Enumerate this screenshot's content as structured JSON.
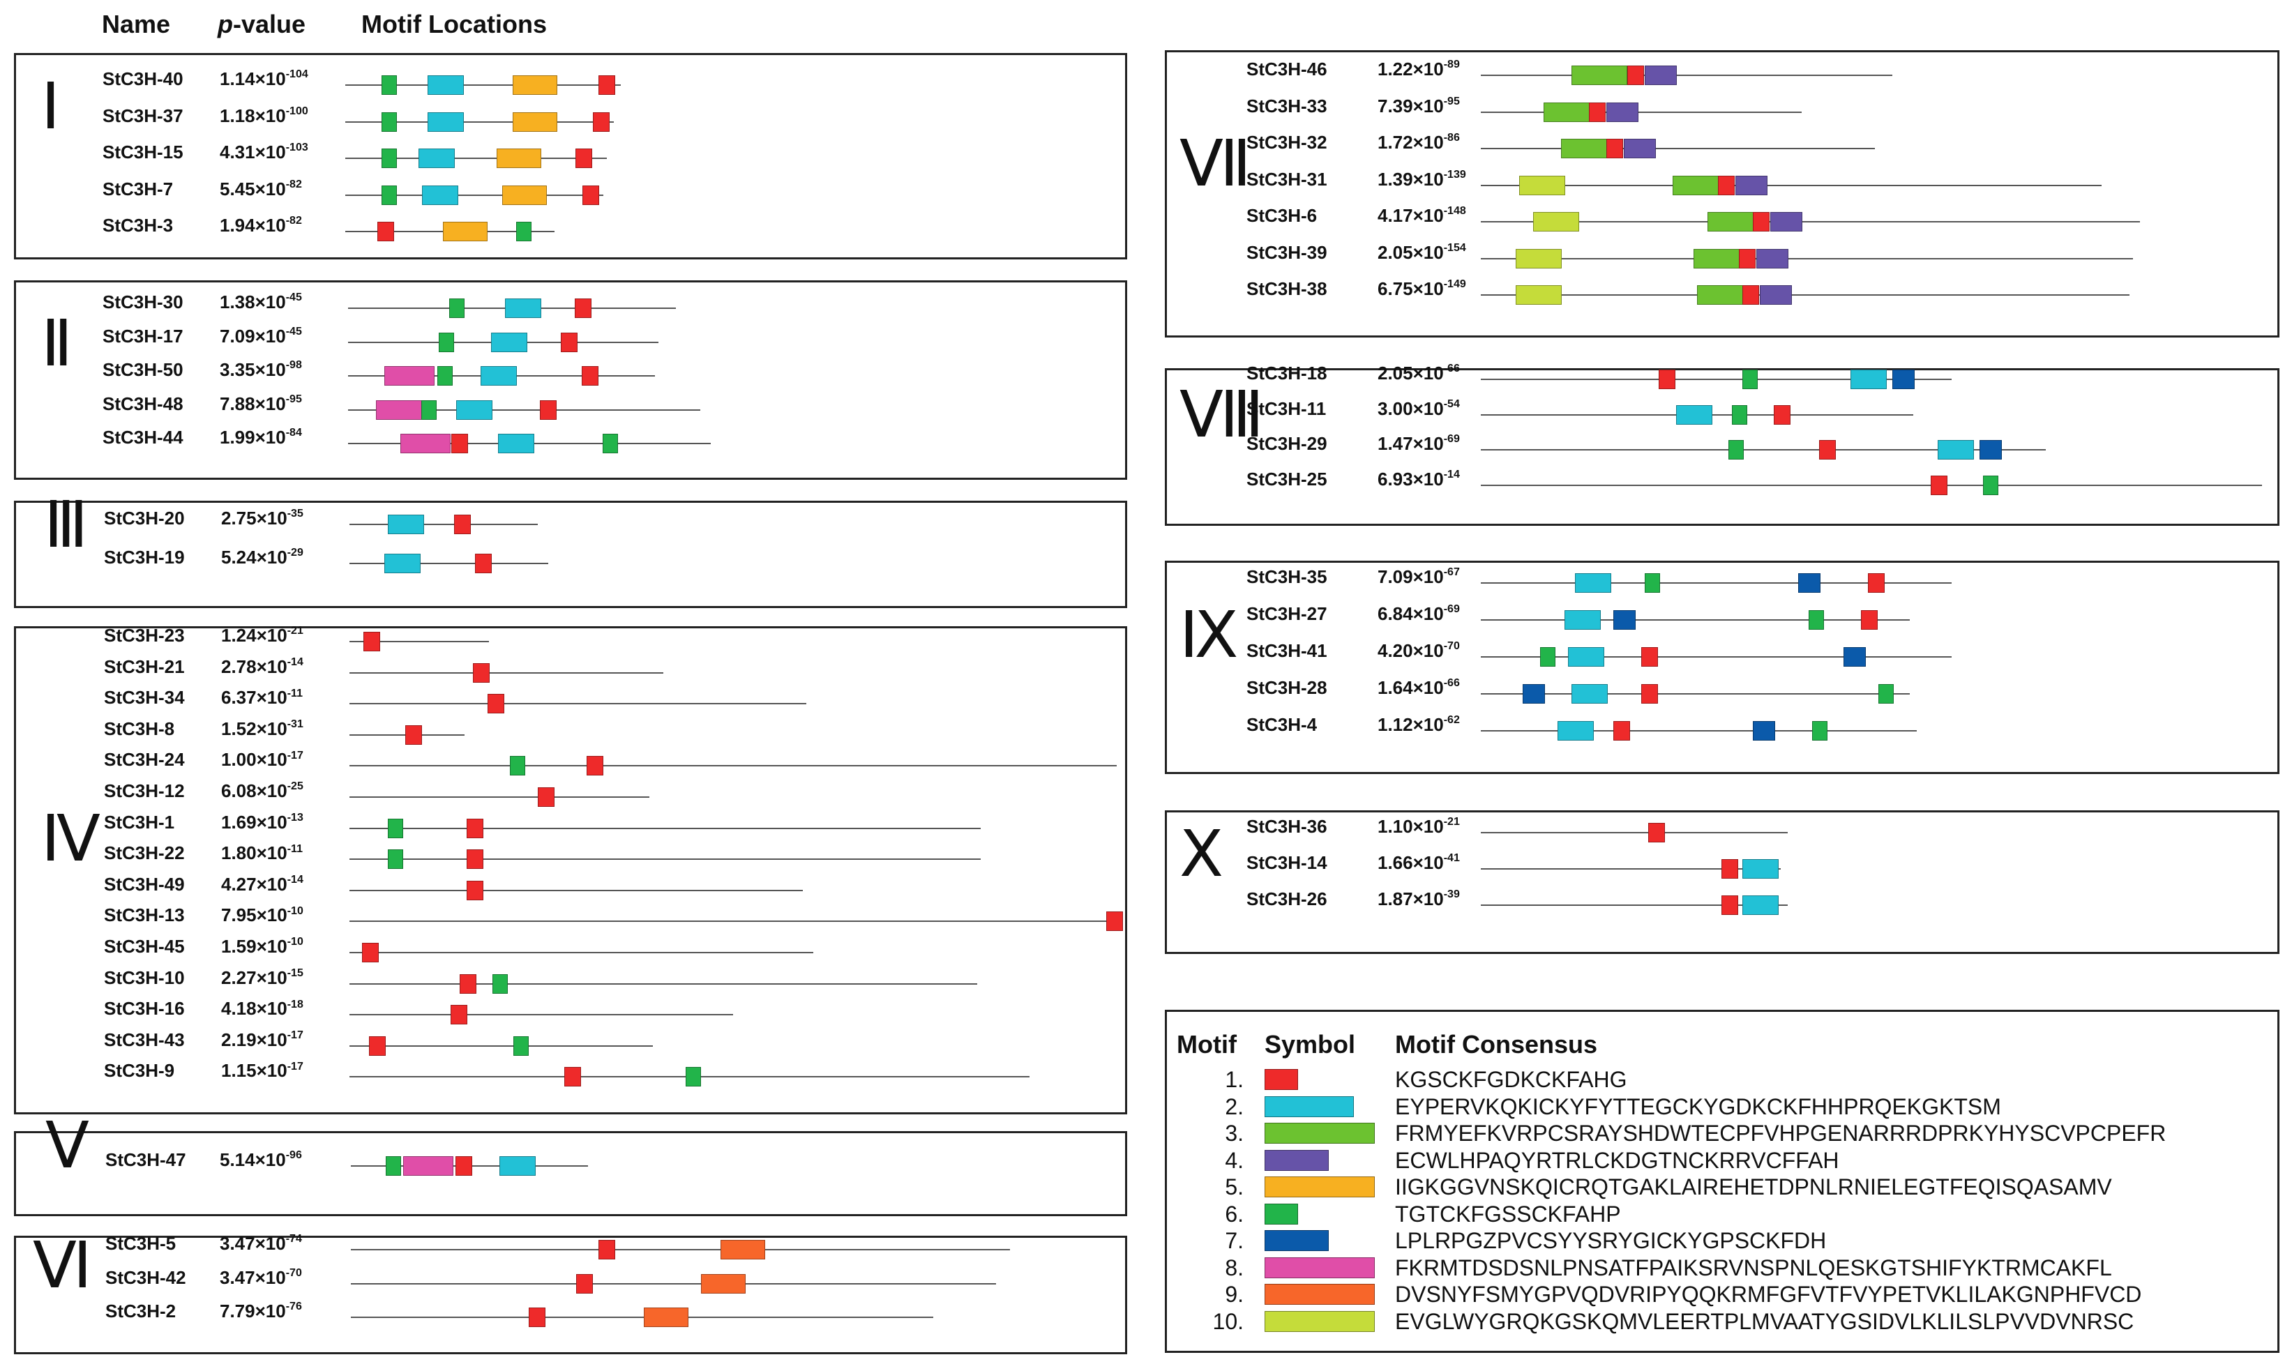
{
  "header": {
    "name": "Name",
    "pvalue_italic": "p",
    "pvalue_rest": "-value",
    "locations": "Motif Locations"
  },
  "motifs": [
    {
      "id": 1,
      "color": "#ee2a2a",
      "sequence": "KGSCKFGDKCKFAHG"
    },
    {
      "id": 2,
      "color": "#22c1d6",
      "sequence": "EYPERVKQKICKYFYTTEGCKYGDKCKFHHPRQEKGKTSM"
    },
    {
      "id": 3,
      "color": "#6cc230",
      "sequence": "FRMYEFKVRPCSRAYSHDWTECPFVHPGENARRRDPRKYHYSCVPCPEFR"
    },
    {
      "id": 4,
      "color": "#6653a8",
      "sequence": "ECWLHPAQYRTRLCKDGTNCKRRVCFFAH"
    },
    {
      "id": 5,
      "color": "#f7b021",
      "sequence": "IIGKGGVNSKQICRQTGAKLAIREHETDPNLRNIELEGTFEQISQASAMV"
    },
    {
      "id": 6,
      "color": "#22b44a",
      "sequence": "TGTCKFGSSCKFAHP"
    },
    {
      "id": 7,
      "color": "#0b5aaa",
      "sequence": "LPLRPGZPVCSYYSRYGICKYGPSCKFDH"
    },
    {
      "id": 8,
      "color": "#e04ea8",
      "sequence": "FKRMTDSDSNLPNSATFPAIKSRVNSPNLQESKGTSHIFYKTRMCAKFL"
    },
    {
      "id": 9,
      "color": "#f7662a",
      "sequence": "DVSNYFSMYGPVQDVRIPYQQKRMFGFVTFVYPETVKLILAKGNPHFVCD"
    },
    {
      "id": 10,
      "color": "#c5dc3a",
      "sequence": "EVGLWYGRQKGSKQMVLEERTPLMVAATYGSIDVLKLILSLPVVDVNRSC"
    }
  ],
  "legend": {
    "col_motif": "Motif",
    "col_symbol": "Symbol",
    "col_consensus": "Motif Consensus"
  },
  "groups": [
    {
      "roman": "Ⅰ",
      "genes": [
        {
          "name": "StC3H-40",
          "p": "1.14×10",
          "exp": "-104",
          "len": 395,
          "motifs": [
            [
              6,
              52
            ],
            [
              2,
              118
            ],
            [
              5,
              240
            ],
            [
              1,
              363
            ]
          ]
        },
        {
          "name": "StC3H-37",
          "p": "1.18×10",
          "exp": "-100",
          "len": 385,
          "motifs": [
            [
              6,
              52
            ],
            [
              2,
              118
            ],
            [
              5,
              240
            ],
            [
              1,
              355
            ]
          ]
        },
        {
          "name": "StC3H-15",
          "p": "4.31×10",
          "exp": "-103",
          "len": 375,
          "motifs": [
            [
              6,
              52
            ],
            [
              2,
              105
            ],
            [
              5,
              217
            ],
            [
              1,
              330
            ]
          ]
        },
        {
          "name": "StC3H-7",
          "p": "5.45×10",
          "exp": "-82",
          "len": 370,
          "motifs": [
            [
              6,
              52
            ],
            [
              2,
              110
            ],
            [
              5,
              225
            ],
            [
              1,
              340
            ]
          ]
        },
        {
          "name": "StC3H-3",
          "p": "1.94×10",
          "exp": "-82",
          "len": 300,
          "motifs": [
            [
              1,
              46
            ],
            [
              5,
              140
            ],
            [
              6,
              245
            ]
          ]
        }
      ]
    },
    {
      "roman": "Ⅱ",
      "genes": [
        {
          "name": "StC3H-30",
          "p": "1.38×10",
          "exp": "-45",
          "len": 470,
          "motifs": [
            [
              6,
              145
            ],
            [
              2,
              225
            ],
            [
              1,
              325
            ]
          ]
        },
        {
          "name": "StC3H-17",
          "p": "7.09×10",
          "exp": "-45",
          "len": 445,
          "motifs": [
            [
              6,
              130
            ],
            [
              2,
              205
            ],
            [
              1,
              305
            ]
          ]
        },
        {
          "name": "StC3H-50",
          "p": "3.35×10",
          "exp": "-98",
          "len": 440,
          "motifs": [
            [
              8,
              52
            ],
            [
              6,
              128
            ],
            [
              2,
              190
            ],
            [
              1,
              335
            ]
          ]
        },
        {
          "name": "StC3H-48",
          "p": "7.88×10",
          "exp": "-95",
          "len": 505,
          "motifs": [
            [
              8,
              40
            ],
            [
              6,
              105
            ],
            [
              2,
              155
            ],
            [
              1,
              275
            ]
          ]
        },
        {
          "name": "StC3H-44",
          "p": "1.99×10",
          "exp": "-84",
          "len": 520,
          "motifs": [
            [
              8,
              75
            ],
            [
              1,
              148
            ],
            [
              2,
              215
            ],
            [
              6,
              365
            ]
          ]
        }
      ]
    },
    {
      "roman": "Ⅲ",
      "genes": [
        {
          "name": "StC3H-20",
          "p": "2.75×10",
          "exp": "-35",
          "len": 270,
          "motifs": [
            [
              2,
              55
            ],
            [
              1,
              150
            ]
          ]
        },
        {
          "name": "StC3H-19",
          "p": "5.24×10",
          "exp": "-29",
          "len": 285,
          "motifs": [
            [
              2,
              50
            ],
            [
              1,
              180
            ]
          ]
        }
      ]
    },
    {
      "roman": "Ⅳ",
      "genes": [
        {
          "name": "StC3H-23",
          "p": "1.24×10",
          "exp": "-21",
          "len": 200,
          "motifs": [
            [
              1,
              20
            ]
          ]
        },
        {
          "name": "StC3H-21",
          "p": "2.78×10",
          "exp": "-14",
          "len": 450,
          "motifs": [
            [
              1,
              177
            ]
          ]
        },
        {
          "name": "StC3H-34",
          "p": "6.37×10",
          "exp": "-11",
          "len": 655,
          "motifs": [
            [
              1,
              198
            ]
          ]
        },
        {
          "name": "StC3H-8",
          "p": "1.52×10",
          "exp": "-31",
          "len": 165,
          "motifs": [
            [
              1,
              80
            ]
          ]
        },
        {
          "name": "StC3H-24",
          "p": "1.00×10",
          "exp": "-17",
          "len": 1100,
          "motifs": [
            [
              6,
              230
            ],
            [
              1,
              340
            ]
          ]
        },
        {
          "name": "StC3H-12",
          "p": "6.08×10",
          "exp": "-25",
          "len": 430,
          "motifs": [
            [
              1,
              270
            ]
          ]
        },
        {
          "name": "StC3H-1",
          "p": "1.69×10",
          "exp": "-13",
          "len": 905,
          "motifs": [
            [
              6,
              55
            ],
            [
              1,
              168
            ]
          ]
        },
        {
          "name": "StC3H-22",
          "p": "1.80×10",
          "exp": "-11",
          "len": 905,
          "motifs": [
            [
              6,
              55
            ],
            [
              1,
              168
            ]
          ]
        },
        {
          "name": "StC3H-49",
          "p": "4.27×10",
          "exp": "-14",
          "len": 650,
          "motifs": [
            [
              1,
              168
            ]
          ]
        },
        {
          "name": "StC3H-13",
          "p": "7.95×10",
          "exp": "-10",
          "len": 1100,
          "motifs": [
            [
              1,
              1085
            ]
          ]
        },
        {
          "name": "StC3H-45",
          "p": "1.59×10",
          "exp": "-10",
          "len": 665,
          "motifs": [
            [
              1,
              18
            ]
          ]
        },
        {
          "name": "StC3H-10",
          "p": "2.27×10",
          "exp": "-15",
          "len": 900,
          "motifs": [
            [
              1,
              158
            ],
            [
              6,
              205
            ]
          ]
        },
        {
          "name": "StC3H-16",
          "p": "4.18×10",
          "exp": "-18",
          "len": 550,
          "motifs": [
            [
              1,
              145
            ]
          ]
        },
        {
          "name": "StC3H-43",
          "p": "2.19×10",
          "exp": "-17",
          "len": 435,
          "motifs": [
            [
              1,
              28
            ],
            [
              6,
              235
            ]
          ]
        },
        {
          "name": "StC3H-9",
          "p": "1.15×10",
          "exp": "-17",
          "len": 975,
          "motifs": [
            [
              1,
              308
            ],
            [
              6,
              482
            ]
          ]
        }
      ]
    },
    {
      "roman": "Ⅴ",
      "genes": [
        {
          "name": "StC3H-47",
          "p": "5.14×10",
          "exp": "-96",
          "len": 340,
          "motifs": [
            [
              6,
              50
            ],
            [
              8,
              75
            ],
            [
              1,
              150
            ],
            [
              2,
              213
            ]
          ]
        }
      ]
    },
    {
      "roman": "Ⅵ",
      "genes": [
        {
          "name": "StC3H-5",
          "p": "3.47×10",
          "exp": "-74",
          "len": 945,
          "motifs": [
            [
              1,
              355
            ],
            [
              9,
              530
            ]
          ]
        },
        {
          "name": "StC3H-42",
          "p": "3.47×10",
          "exp": "-70",
          "len": 925,
          "motifs": [
            [
              1,
              323
            ],
            [
              9,
              502
            ]
          ]
        },
        {
          "name": "StC3H-2",
          "p": "7.79×10",
          "exp": "-76",
          "len": 835,
          "motifs": [
            [
              1,
              255
            ],
            [
              9,
              420
            ]
          ]
        }
      ]
    },
    {
      "roman": "Ⅶ",
      "genes": [
        {
          "name": "StC3H-46",
          "p": "1.22×10",
          "exp": "-89",
          "len": 590,
          "motifs": [
            [
              3,
              130
            ],
            [
              1,
              210
            ],
            [
              4,
              235
            ]
          ]
        },
        {
          "name": "StC3H-33",
          "p": "7.39×10",
          "exp": "-95",
          "len": 460,
          "motifs": [
            [
              3,
              90
            ],
            [
              1,
              155
            ],
            [
              4,
              180
            ]
          ]
        },
        {
          "name": "StC3H-32",
          "p": "1.72×10",
          "exp": "-86",
          "len": 565,
          "motifs": [
            [
              3,
              115
            ],
            [
              1,
              180
            ],
            [
              4,
              205
            ]
          ]
        },
        {
          "name": "StC3H-31",
          "p": "1.39×10",
          "exp": "-139",
          "len": 890,
          "motifs": [
            [
              10,
              55
            ],
            [
              3,
              275
            ],
            [
              1,
              340
            ],
            [
              4,
              365
            ]
          ]
        },
        {
          "name": "StC3H-6",
          "p": "4.17×10",
          "exp": "-148",
          "len": 945,
          "motifs": [
            [
              10,
              75
            ],
            [
              3,
              325
            ],
            [
              1,
              390
            ],
            [
              4,
              415
            ]
          ]
        },
        {
          "name": "StC3H-39",
          "p": "2.05×10",
          "exp": "-154",
          "len": 935,
          "motifs": [
            [
              10,
              50
            ],
            [
              3,
              305
            ],
            [
              1,
              370
            ],
            [
              4,
              395
            ]
          ]
        },
        {
          "name": "StC3H-38",
          "p": "6.75×10",
          "exp": "-149",
          "len": 930,
          "motifs": [
            [
              10,
              50
            ],
            [
              3,
              310
            ],
            [
              1,
              375
            ],
            [
              4,
              400
            ]
          ]
        }
      ]
    },
    {
      "roman": "Ⅷ",
      "genes": [
        {
          "name": "StC3H-18",
          "p": "2.05×10",
          "exp": "-66",
          "len": 675,
          "motifs": [
            [
              1,
              255
            ],
            [
              6,
              375
            ],
            [
              2,
              530
            ],
            [
              7,
              590
            ]
          ]
        },
        {
          "name": "StC3H-11",
          "p": "3.00×10",
          "exp": "-54",
          "len": 620,
          "motifs": [
            [
              2,
              280
            ],
            [
              6,
              360
            ],
            [
              1,
              420
            ]
          ]
        },
        {
          "name": "StC3H-29",
          "p": "1.47×10",
          "exp": "-69",
          "len": 810,
          "motifs": [
            [
              6,
              355
            ],
            [
              1,
              485
            ],
            [
              2,
              655
            ],
            [
              7,
              715
            ]
          ]
        },
        {
          "name": "StC3H-25",
          "p": "6.93×10",
          "exp": "-14",
          "len": 1120,
          "motifs": [
            [
              1,
              645
            ],
            [
              6,
              720
            ]
          ]
        }
      ]
    },
    {
      "roman": "Ⅸ",
      "genes": [
        {
          "name": "StC3H-35",
          "p": "7.09×10",
          "exp": "-67",
          "len": 675,
          "motifs": [
            [
              2,
              135
            ],
            [
              6,
              235
            ],
            [
              7,
              455
            ],
            [
              1,
              555
            ]
          ]
        },
        {
          "name": "StC3H-27",
          "p": "6.84×10",
          "exp": "-69",
          "len": 615,
          "motifs": [
            [
              2,
              120
            ],
            [
              7,
              190
            ],
            [
              6,
              470
            ],
            [
              1,
              545
            ]
          ]
        },
        {
          "name": "StC3H-41",
          "p": "4.20×10",
          "exp": "-70",
          "len": 675,
          "motifs": [
            [
              6,
              85
            ],
            [
              2,
              125
            ],
            [
              1,
              230
            ],
            [
              7,
              520
            ]
          ]
        },
        {
          "name": "StC3H-28",
          "p": "1.64×10",
          "exp": "-66",
          "len": 615,
          "motifs": [
            [
              7,
              60
            ],
            [
              2,
              130
            ],
            [
              1,
              230
            ],
            [
              6,
              570
            ]
          ]
        },
        {
          "name": "StC3H-4",
          "p": "1.12×10",
          "exp": "-62",
          "len": 625,
          "motifs": [
            [
              2,
              110
            ],
            [
              1,
              190
            ],
            [
              7,
              390
            ],
            [
              6,
              475
            ]
          ]
        }
      ]
    },
    {
      "roman": "Ⅹ",
      "genes": [
        {
          "name": "StC3H-36",
          "p": "1.10×10",
          "exp": "-21",
          "len": 440,
          "motifs": [
            [
              1,
              240
            ]
          ]
        },
        {
          "name": "StC3H-14",
          "p": "1.66×10",
          "exp": "-41",
          "len": 430,
          "motifs": [
            [
              1,
              345
            ],
            [
              2,
              375
            ]
          ]
        },
        {
          "name": "StC3H-26",
          "p": "1.87×10",
          "exp": "-39",
          "len": 440,
          "motifs": [
            [
              1,
              345
            ],
            [
              2,
              375
            ]
          ]
        }
      ]
    }
  ]
}
